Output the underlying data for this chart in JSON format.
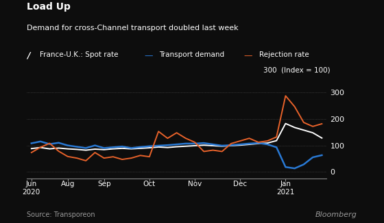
{
  "title": "Load Up",
  "subtitle": "Demand for cross-Channel transport doubled last week",
  "source": "Source: Transporeon",
  "bloomberg": "Bloomberg",
  "legend_labels": [
    "France-U.K.: Spot rate",
    "Transport demand",
    "Rejection rate"
  ],
  "legend_colors": [
    "#ffffff",
    "#2979d4",
    "#e8622a"
  ],
  "background_color": "#0d0d0d",
  "text_color": "#ffffff",
  "grid_color": "#555555",
  "ylim": [
    -25,
    330
  ],
  "yticks": [
    0,
    100,
    200,
    300
  ],
  "x_tick_positions": [
    0,
    4,
    8,
    13,
    18,
    23,
    28
  ],
  "x_tick_labels": [
    "Jun",
    "Aug",
    "Sep",
    "Oct",
    "Nov",
    "Dec",
    "Jan"
  ],
  "spot_x": [
    0,
    1,
    2,
    3,
    4,
    5,
    6,
    7,
    8,
    9,
    10,
    11,
    12,
    13,
    14,
    15,
    16,
    17,
    18,
    19,
    20,
    21,
    22,
    23,
    24,
    25,
    26,
    27,
    28,
    29,
    30,
    31,
    32
  ],
  "spot_y": [
    88,
    92,
    87,
    90,
    87,
    85,
    82,
    86,
    84,
    87,
    89,
    87,
    89,
    91,
    94,
    92,
    95,
    97,
    99,
    101,
    99,
    97,
    99,
    101,
    104,
    107,
    109,
    118,
    183,
    168,
    158,
    148,
    128
  ],
  "demand_x": [
    0,
    1,
    2,
    3,
    4,
    5,
    6,
    7,
    8,
    9,
    10,
    11,
    12,
    13,
    14,
    15,
    16,
    17,
    18,
    19,
    20,
    21,
    22,
    23,
    24,
    25,
    26,
    27,
    28,
    29,
    30,
    31,
    32
  ],
  "demand_y": [
    108,
    115,
    105,
    110,
    100,
    95,
    90,
    100,
    90,
    93,
    96,
    90,
    94,
    97,
    99,
    101,
    104,
    107,
    107,
    109,
    104,
    99,
    101,
    104,
    107,
    109,
    104,
    93,
    18,
    13,
    28,
    55,
    63
  ],
  "rejection_x": [
    0,
    1,
    2,
    3,
    4,
    5,
    6,
    7,
    8,
    9,
    10,
    11,
    12,
    13,
    14,
    15,
    16,
    17,
    18,
    19,
    20,
    21,
    22,
    23,
    24,
    25,
    26,
    27,
    28,
    29,
    30,
    31,
    32
  ],
  "rejection_y": [
    73,
    93,
    108,
    78,
    58,
    52,
    42,
    73,
    52,
    57,
    47,
    52,
    62,
    57,
    153,
    127,
    148,
    127,
    112,
    77,
    82,
    77,
    107,
    117,
    127,
    112,
    117,
    132,
    288,
    247,
    187,
    172,
    182
  ]
}
